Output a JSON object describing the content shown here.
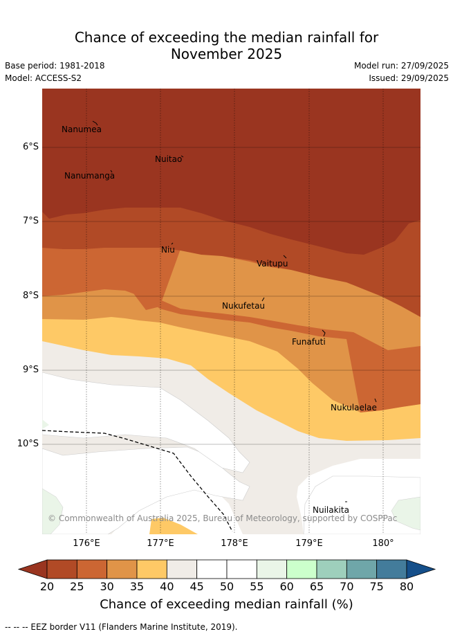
{
  "header": {
    "title_line1": "Chance of exceeding the median rainfall for",
    "title_line2": "November 2025",
    "base_period": "Base period: 1981-2018",
    "model": "Model: ACCESS-S2",
    "model_run": "Model run: 27/09/2025",
    "issued": "Issued: 29/09/2025"
  },
  "map": {
    "places": [
      "Nanumea",
      "Nuitao",
      "Nanumanga",
      "Niu",
      "Vaitupu",
      "Nukufetau",
      "Funafuti",
      "Nukulaelae",
      "Nuilakita"
    ],
    "lat_labels": [
      "6°S",
      "7°S",
      "8°S",
      "9°S",
      "10°S"
    ],
    "lon_labels": [
      "176°E",
      "177°E",
      "178°E",
      "179°E",
      "180°"
    ],
    "copyright": "© Commonwealth of Australia 2025, Bureau of Meteorology, supported by COSPPac"
  },
  "colorbar": {
    "ticks": [
      "20",
      "25",
      "30",
      "35",
      "40",
      "45",
      "50",
      "55",
      "60",
      "65",
      "70",
      "75",
      "80"
    ],
    "colors": [
      "#b14a26",
      "#cc6633",
      "#e09448",
      "#fec966",
      "#f0ece7",
      "#ffffff",
      "#ffffff",
      "#eaf5e8",
      "#ccffcc",
      "#9ecfbc",
      "#6fa6a9",
      "#437c9b"
    ],
    "under_color": "#9a3520",
    "over_color": "#154f8a",
    "title": "Chance of exceeding median rainfall (%)"
  },
  "footnote": "-- -- -- EEZ border V11 (Flanders Marine Institute, 2019)."
}
